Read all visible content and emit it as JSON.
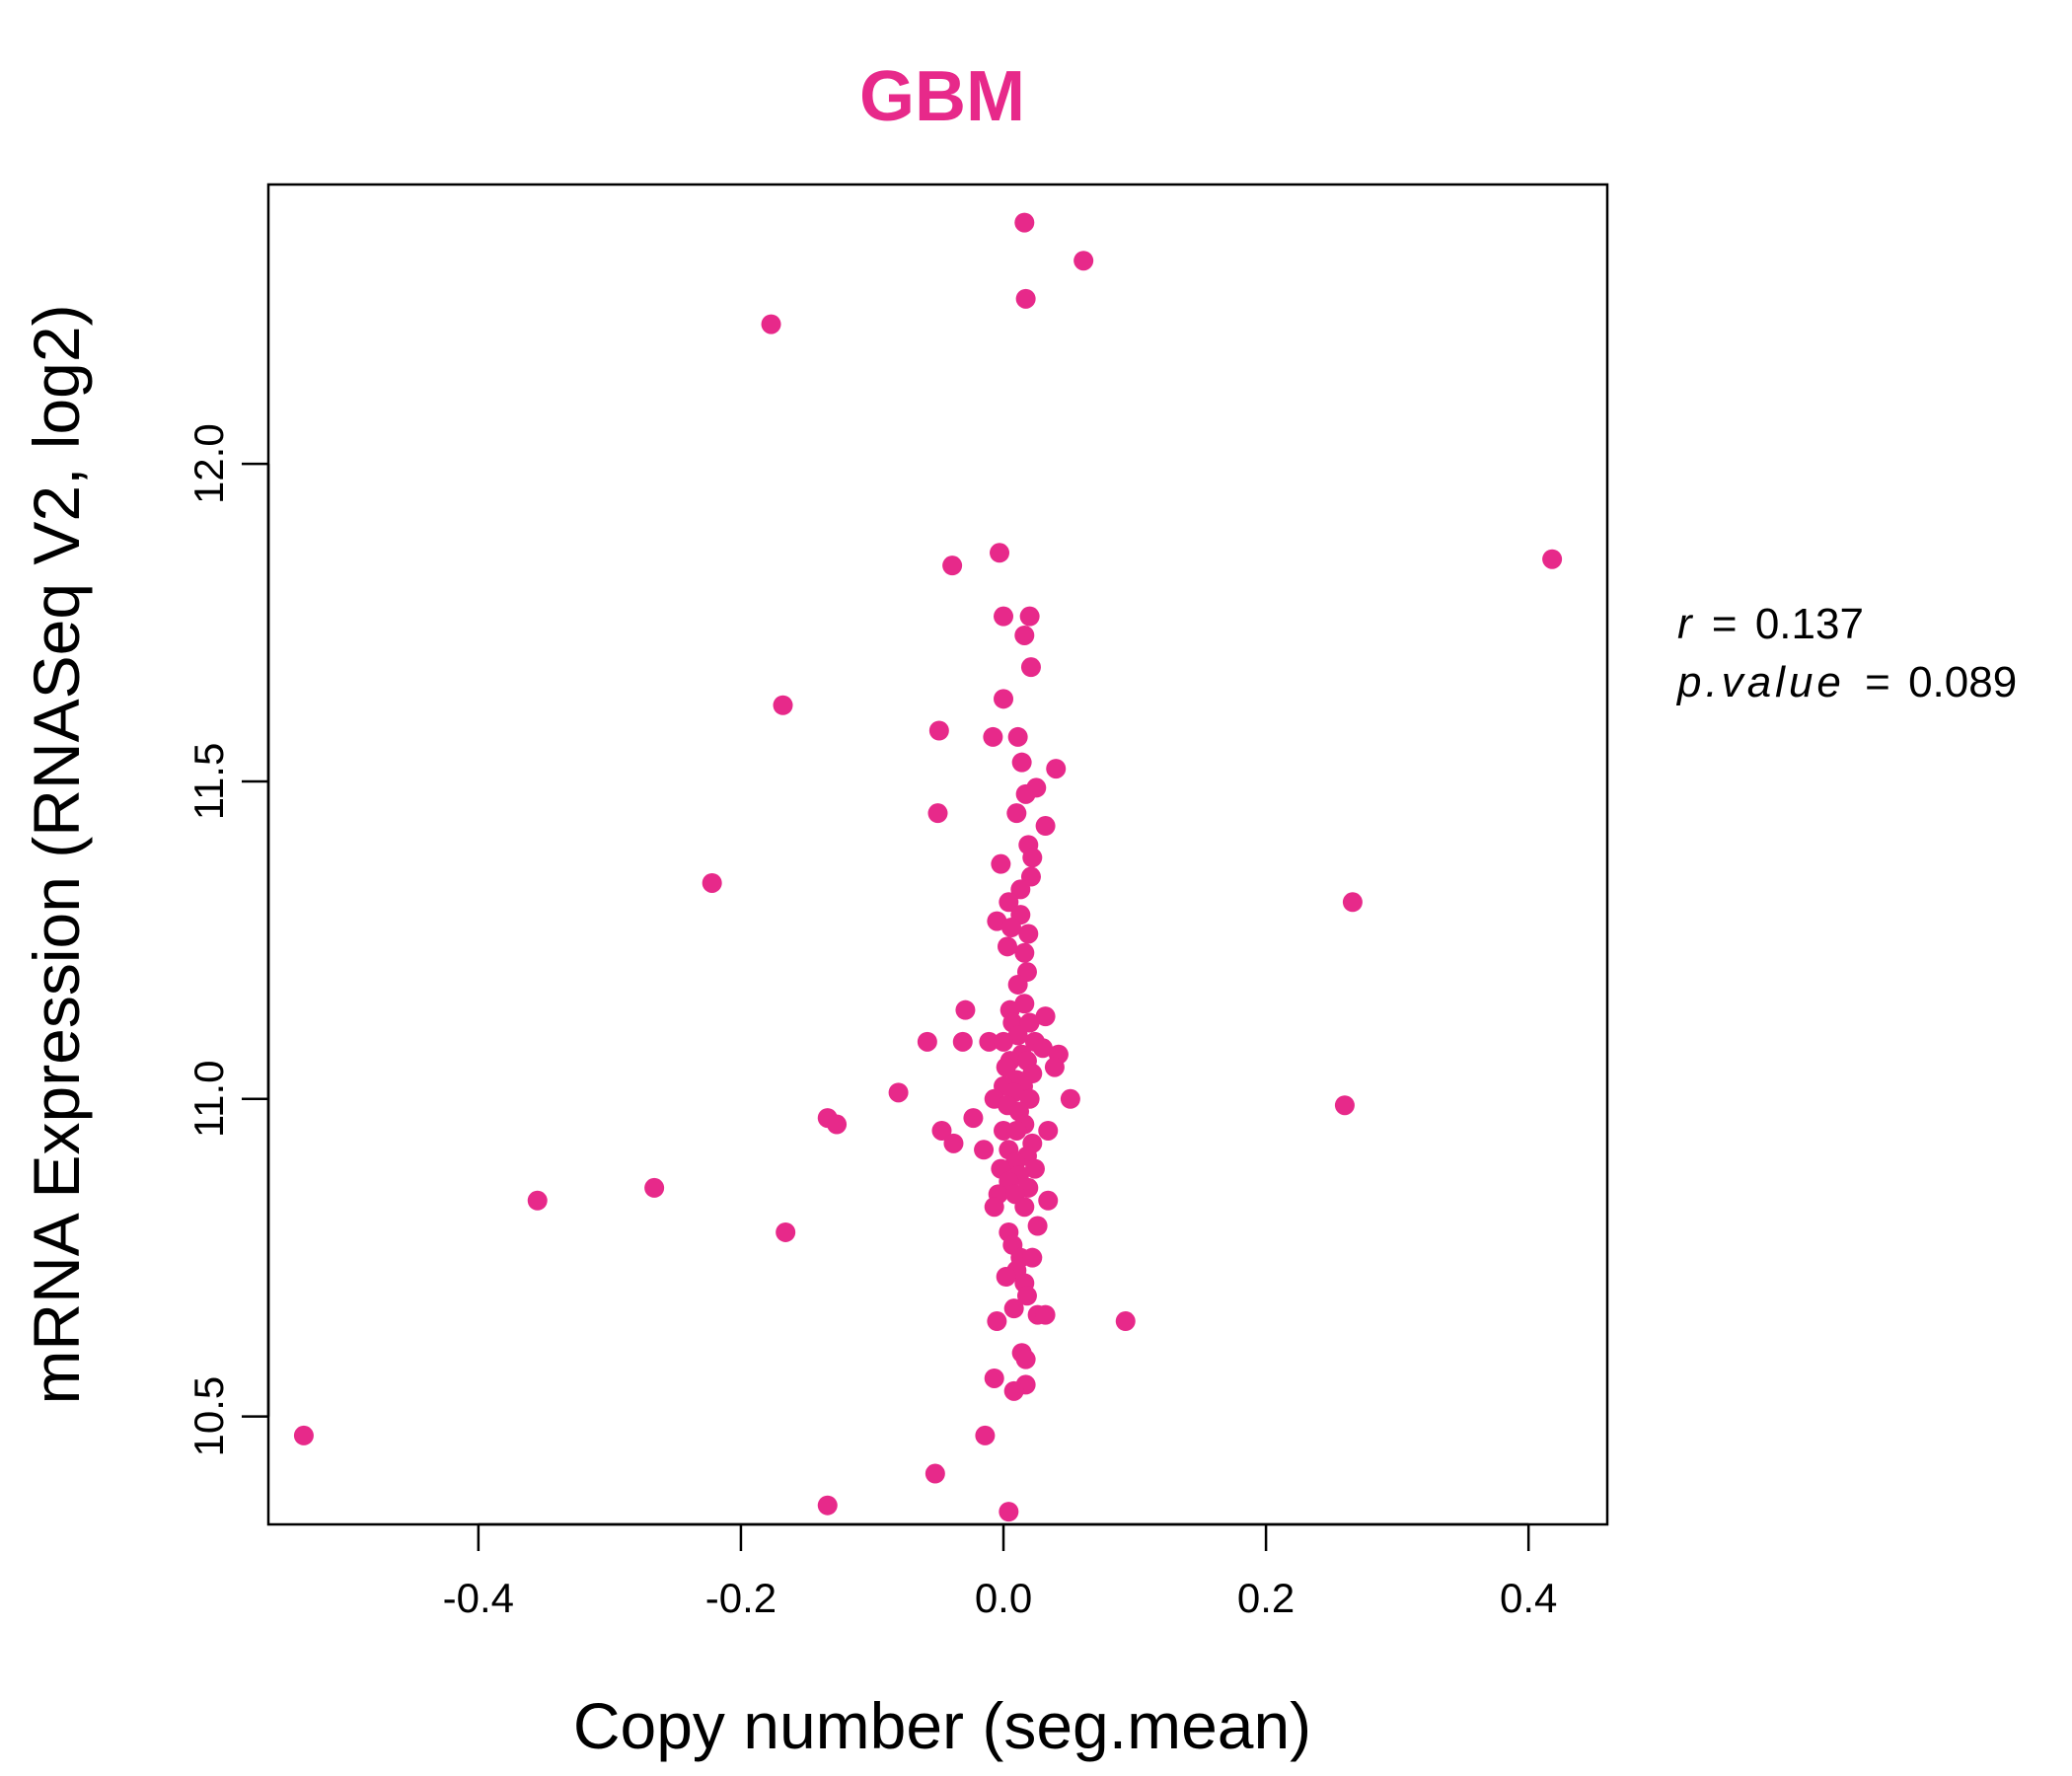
{
  "chart_data": {
    "type": "scatter",
    "title": "GBM",
    "xlabel": "Copy number (seg.mean)",
    "ylabel": "mRNA Expression (RNASeq V2, log2)",
    "xlim": [
      -0.56,
      0.46
    ],
    "ylim": [
      10.33,
      12.44
    ],
    "x_ticks": [
      -0.4,
      -0.2,
      0.0,
      0.2,
      0.4
    ],
    "x_tick_labels": [
      "-0.4",
      "-0.2",
      "0.0",
      "0.2",
      "0.4"
    ],
    "y_ticks": [
      10.5,
      11.0,
      11.5,
      12.0
    ],
    "y_tick_labels": [
      "10.5",
      "11.0",
      "11.5",
      "12.0"
    ],
    "grid": false,
    "legend": "none",
    "color": "#E7298A",
    "stats": {
      "r_label": "r",
      "r_value": "0.137",
      "p_label": "p.value",
      "p_value": "0.089"
    },
    "points": [
      {
        "x": 0.016,
        "y": 12.38
      },
      {
        "x": 0.061,
        "y": 12.32
      },
      {
        "x": 0.017,
        "y": 12.26
      },
      {
        "x": -0.177,
        "y": 12.22
      },
      {
        "x": -0.003,
        "y": 11.86
      },
      {
        "x": -0.039,
        "y": 11.84
      },
      {
        "x": 0.418,
        "y": 11.85
      },
      {
        "x": 0.0,
        "y": 11.76
      },
      {
        "x": 0.02,
        "y": 11.76
      },
      {
        "x": 0.016,
        "y": 11.73
      },
      {
        "x": 0.021,
        "y": 11.68
      },
      {
        "x": 0.0,
        "y": 11.63
      },
      {
        "x": -0.168,
        "y": 11.62
      },
      {
        "x": -0.049,
        "y": 11.58
      },
      {
        "x": -0.008,
        "y": 11.57
      },
      {
        "x": 0.011,
        "y": 11.57
      },
      {
        "x": 0.014,
        "y": 11.53
      },
      {
        "x": 0.04,
        "y": 11.52
      },
      {
        "x": 0.025,
        "y": 11.49
      },
      {
        "x": 0.017,
        "y": 11.48
      },
      {
        "x": 0.01,
        "y": 11.45
      },
      {
        "x": -0.05,
        "y": 11.45
      },
      {
        "x": 0.032,
        "y": 11.43
      },
      {
        "x": 0.019,
        "y": 11.4
      },
      {
        "x": 0.022,
        "y": 11.38
      },
      {
        "x": -0.002,
        "y": 11.37
      },
      {
        "x": 0.021,
        "y": 11.35
      },
      {
        "x": -0.222,
        "y": 11.34
      },
      {
        "x": 0.013,
        "y": 11.33
      },
      {
        "x": 0.004,
        "y": 11.31
      },
      {
        "x": 0.266,
        "y": 11.31
      },
      {
        "x": 0.013,
        "y": 11.29
      },
      {
        "x": -0.005,
        "y": 11.28
      },
      {
        "x": 0.006,
        "y": 11.27
      },
      {
        "x": 0.019,
        "y": 11.26
      },
      {
        "x": 0.003,
        "y": 11.24
      },
      {
        "x": 0.016,
        "y": 11.23
      },
      {
        "x": 0.018,
        "y": 11.2
      },
      {
        "x": 0.011,
        "y": 11.18
      },
      {
        "x": -0.029,
        "y": 11.14
      },
      {
        "x": 0.005,
        "y": 11.14
      },
      {
        "x": 0.016,
        "y": 11.15
      },
      {
        "x": 0.032,
        "y": 11.13
      },
      {
        "x": 0.007,
        "y": 11.12
      },
      {
        "x": 0.02,
        "y": 11.12
      },
      {
        "x": 0.011,
        "y": 11.1
      },
      {
        "x": -0.011,
        "y": 11.09
      },
      {
        "x": -0.058,
        "y": 11.09
      },
      {
        "x": -0.031,
        "y": 11.09
      },
      {
        "x": 0.0,
        "y": 11.09
      },
      {
        "x": 0.024,
        "y": 11.09
      },
      {
        "x": 0.03,
        "y": 11.08
      },
      {
        "x": 0.014,
        "y": 11.07
      },
      {
        "x": 0.042,
        "y": 11.07
      },
      {
        "x": 0.005,
        "y": 11.06
      },
      {
        "x": 0.018,
        "y": 11.06
      },
      {
        "x": 0.002,
        "y": 11.05
      },
      {
        "x": 0.039,
        "y": 11.05
      },
      {
        "x": 0.022,
        "y": 11.04
      },
      {
        "x": 0.01,
        "y": 11.03
      },
      {
        "x": 0.0,
        "y": 11.02
      },
      {
        "x": 0.015,
        "y": 11.02
      },
      {
        "x": -0.08,
        "y": 11.01
      },
      {
        "x": 0.008,
        "y": 11.01
      },
      {
        "x": 0.051,
        "y": 11.0
      },
      {
        "x": -0.007,
        "y": 11.0
      },
      {
        "x": 0.02,
        "y": 11.0
      },
      {
        "x": 0.003,
        "y": 10.99
      },
      {
        "x": 0.26,
        "y": 10.99
      },
      {
        "x": 0.012,
        "y": 10.98
      },
      {
        "x": -0.134,
        "y": 10.97
      },
      {
        "x": -0.023,
        "y": 10.97
      },
      {
        "x": 0.016,
        "y": 10.96
      },
      {
        "x": -0.127,
        "y": 10.96
      },
      {
        "x": 0.0,
        "y": 10.95
      },
      {
        "x": 0.01,
        "y": 10.95
      },
      {
        "x": -0.047,
        "y": 10.95
      },
      {
        "x": 0.034,
        "y": 10.95
      },
      {
        "x": -0.038,
        "y": 10.93
      },
      {
        "x": 0.022,
        "y": 10.93
      },
      {
        "x": -0.015,
        "y": 10.92
      },
      {
        "x": 0.004,
        "y": 10.92
      },
      {
        "x": 0.018,
        "y": 10.91
      },
      {
        "x": 0.009,
        "y": 10.9
      },
      {
        "x": -0.002,
        "y": 10.89
      },
      {
        "x": 0.024,
        "y": 10.89
      },
      {
        "x": 0.012,
        "y": 10.88
      },
      {
        "x": 0.004,
        "y": 10.87
      },
      {
        "x": 0.019,
        "y": 10.86
      },
      {
        "x": -0.266,
        "y": 10.86
      },
      {
        "x": -0.004,
        "y": 10.85
      },
      {
        "x": 0.009,
        "y": 10.85
      },
      {
        "x": -0.355,
        "y": 10.84
      },
      {
        "x": 0.034,
        "y": 10.84
      },
      {
        "x": -0.007,
        "y": 10.83
      },
      {
        "x": 0.016,
        "y": 10.83
      },
      {
        "x": 0.026,
        "y": 10.8
      },
      {
        "x": -0.166,
        "y": 10.79
      },
      {
        "x": 0.004,
        "y": 10.79
      },
      {
        "x": 0.007,
        "y": 10.77
      },
      {
        "x": 0.013,
        "y": 10.75
      },
      {
        "x": 0.022,
        "y": 10.75
      },
      {
        "x": 0.01,
        "y": 10.73
      },
      {
        "x": 0.002,
        "y": 10.72
      },
      {
        "x": 0.016,
        "y": 10.71
      },
      {
        "x": 0.018,
        "y": 10.69
      },
      {
        "x": 0.008,
        "y": 10.67
      },
      {
        "x": 0.026,
        "y": 10.66
      },
      {
        "x": 0.032,
        "y": 10.66
      },
      {
        "x": -0.005,
        "y": 10.65
      },
      {
        "x": 0.093,
        "y": 10.65
      },
      {
        "x": 0.014,
        "y": 10.6
      },
      {
        "x": 0.017,
        "y": 10.59
      },
      {
        "x": -0.007,
        "y": 10.56
      },
      {
        "x": 0.017,
        "y": 10.55
      },
      {
        "x": 0.008,
        "y": 10.54
      },
      {
        "x": -0.533,
        "y": 10.47
      },
      {
        "x": -0.014,
        "y": 10.47
      },
      {
        "x": -0.052,
        "y": 10.41
      },
      {
        "x": -0.134,
        "y": 10.36
      },
      {
        "x": 0.004,
        "y": 10.35
      }
    ]
  }
}
